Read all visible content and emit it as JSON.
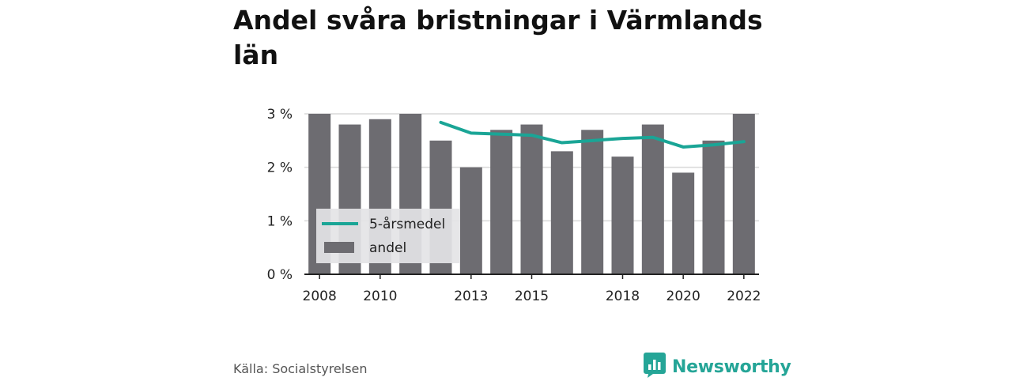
{
  "title": "Andel svåra bristningar i Värmlands län",
  "source": "Källa: Socialstyrelsen",
  "brand": {
    "name": "Newsworthy",
    "icon": "bar-chart-icon",
    "color": "#25a597"
  },
  "colors": {
    "bar": "#6d6c71",
    "line": "#1aa596",
    "grid": "#d9d9d9",
    "axis": "#222222",
    "legend_bg": "#e4e4e6"
  },
  "chart_data": {
    "type": "bar",
    "years": [
      2008,
      2009,
      2010,
      2011,
      2012,
      2013,
      2014,
      2015,
      2016,
      2017,
      2018,
      2019,
      2020,
      2021,
      2022
    ],
    "x_tick_labels": [
      "2008",
      "2010",
      "2013",
      "2015",
      "2018",
      "2020",
      "2022"
    ],
    "y_tick_labels": [
      "0 %",
      "1 %",
      "2 %",
      "3 %"
    ],
    "ylim": [
      0,
      3
    ],
    "grid": true,
    "legend": {
      "placement": "bottom-left"
    },
    "series": [
      {
        "name": "andel",
        "type": "bar",
        "values": [
          3.0,
          2.8,
          2.9,
          3.0,
          2.5,
          2.0,
          2.7,
          2.8,
          2.3,
          2.7,
          2.2,
          2.8,
          1.9,
          2.5,
          3.0
        ]
      },
      {
        "name": "5-årsmedel",
        "type": "line",
        "values": [
          null,
          null,
          null,
          null,
          2.84,
          2.64,
          2.62,
          2.6,
          2.46,
          2.5,
          2.54,
          2.56,
          2.38,
          2.42,
          2.48
        ]
      }
    ]
  }
}
